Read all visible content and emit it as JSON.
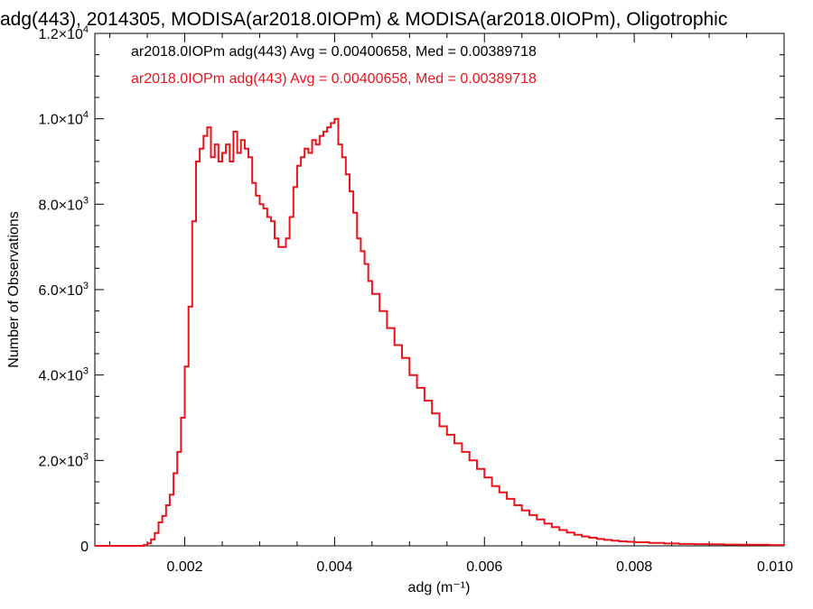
{
  "chart_data": {
    "type": "line",
    "step": true,
    "title": "adg(443), 2014305, MODISA(ar2018.0IOPm) & MODISA(ar2018.0IOPm), Oligotrophic",
    "xlabel": "adg (m⁻¹)",
    "ylabel": "Number of Observations",
    "xlim": [
      0.0008,
      0.01
    ],
    "ylim": [
      0,
      12000
    ],
    "x_ticks": [
      0.002,
      0.004,
      0.006,
      0.008,
      0.01
    ],
    "x_tick_labels": [
      "0.002",
      "0.004",
      "0.006",
      "0.008",
      "0.010"
    ],
    "y_ticks": [
      0,
      2000,
      4000,
      6000,
      8000,
      10000,
      12000
    ],
    "y_tick_labels": [
      {
        "mant": "0",
        "exp": ""
      },
      {
        "mant": "2.0×10",
        "exp": "3"
      },
      {
        "mant": "4.0×10",
        "exp": "3"
      },
      {
        "mant": "6.0×10",
        "exp": "3"
      },
      {
        "mant": "8.0×10",
        "exp": "3"
      },
      {
        "mant": "1.0×10",
        "exp": "4"
      },
      {
        "mant": "1.2×10",
        "exp": "4"
      }
    ],
    "grid": false,
    "legend": [
      {
        "text": "ar2018.0IOPm adg(443) Avg = 0.00400658, Med = 0.00389718",
        "color": "#000000"
      },
      {
        "text": "ar2018.0IOPm adg(443) Avg = 0.00400658, Med = 0.00389718",
        "color": "#e8141c"
      }
    ],
    "series": [
      {
        "color": "#e8141c",
        "x": [
          0.0008,
          0.0012,
          0.00145,
          0.0015,
          0.00155,
          0.0016,
          0.00165,
          0.0017,
          0.00175,
          0.0018,
          0.00185,
          0.0019,
          0.00195,
          0.002,
          0.00205,
          0.0021,
          0.00215,
          0.0022,
          0.00225,
          0.0023,
          0.00235,
          0.0024,
          0.00245,
          0.0025,
          0.00255,
          0.0026,
          0.00265,
          0.0027,
          0.00275,
          0.0028,
          0.00285,
          0.0029,
          0.00295,
          0.003,
          0.00305,
          0.0031,
          0.00315,
          0.0032,
          0.00325,
          0.0033,
          0.00335,
          0.0034,
          0.00345,
          0.0035,
          0.00355,
          0.0036,
          0.00365,
          0.0037,
          0.00375,
          0.0038,
          0.00385,
          0.0039,
          0.00395,
          0.004,
          0.00405,
          0.0041,
          0.00415,
          0.0042,
          0.00425,
          0.0043,
          0.00435,
          0.0044,
          0.00445,
          0.0045,
          0.0046,
          0.0047,
          0.0048,
          0.0049,
          0.005,
          0.0051,
          0.0052,
          0.0053,
          0.0054,
          0.0055,
          0.0056,
          0.0057,
          0.0058,
          0.0059,
          0.006,
          0.0061,
          0.0062,
          0.0063,
          0.0064,
          0.0065,
          0.0066,
          0.0067,
          0.0068,
          0.0069,
          0.007,
          0.0071,
          0.0072,
          0.0073,
          0.0074,
          0.0075,
          0.0076,
          0.0077,
          0.0078,
          0.0079,
          0.008,
          0.0082,
          0.0084,
          0.0086,
          0.0088,
          0.009,
          0.0092,
          0.0094,
          0.0096,
          0.0098,
          0.01
        ],
        "y": [
          0,
          0,
          20,
          60,
          150,
          300,
          550,
          700,
          950,
          1200,
          1700,
          2200,
          3000,
          4200,
          5600,
          7600,
          9000,
          9300,
          9600,
          9800,
          9100,
          9400,
          9000,
          9200,
          9400,
          9000,
          9700,
          9200,
          9500,
          9300,
          9100,
          8500,
          8200,
          8000,
          7900,
          7700,
          7600,
          7200,
          7000,
          7000,
          7200,
          7700,
          8400,
          8900,
          9100,
          9300,
          9200,
          9500,
          9400,
          9600,
          9700,
          9800,
          9900,
          10000,
          9400,
          9100,
          8700,
          8300,
          7800,
          7200,
          6900,
          6600,
          6200,
          5900,
          5500,
          5100,
          4700,
          4400,
          4000,
          3700,
          3400,
          3100,
          2800,
          2600,
          2400,
          2200,
          2000,
          1800,
          1600,
          1400,
          1250,
          1100,
          950,
          830,
          720,
          620,
          520,
          440,
          370,
          310,
          260,
          220,
          190,
          160,
          140,
          120,
          105,
          95,
          85,
          70,
          55,
          45,
          40,
          35,
          30,
          28,
          25,
          20,
          15
        ]
      }
    ]
  }
}
